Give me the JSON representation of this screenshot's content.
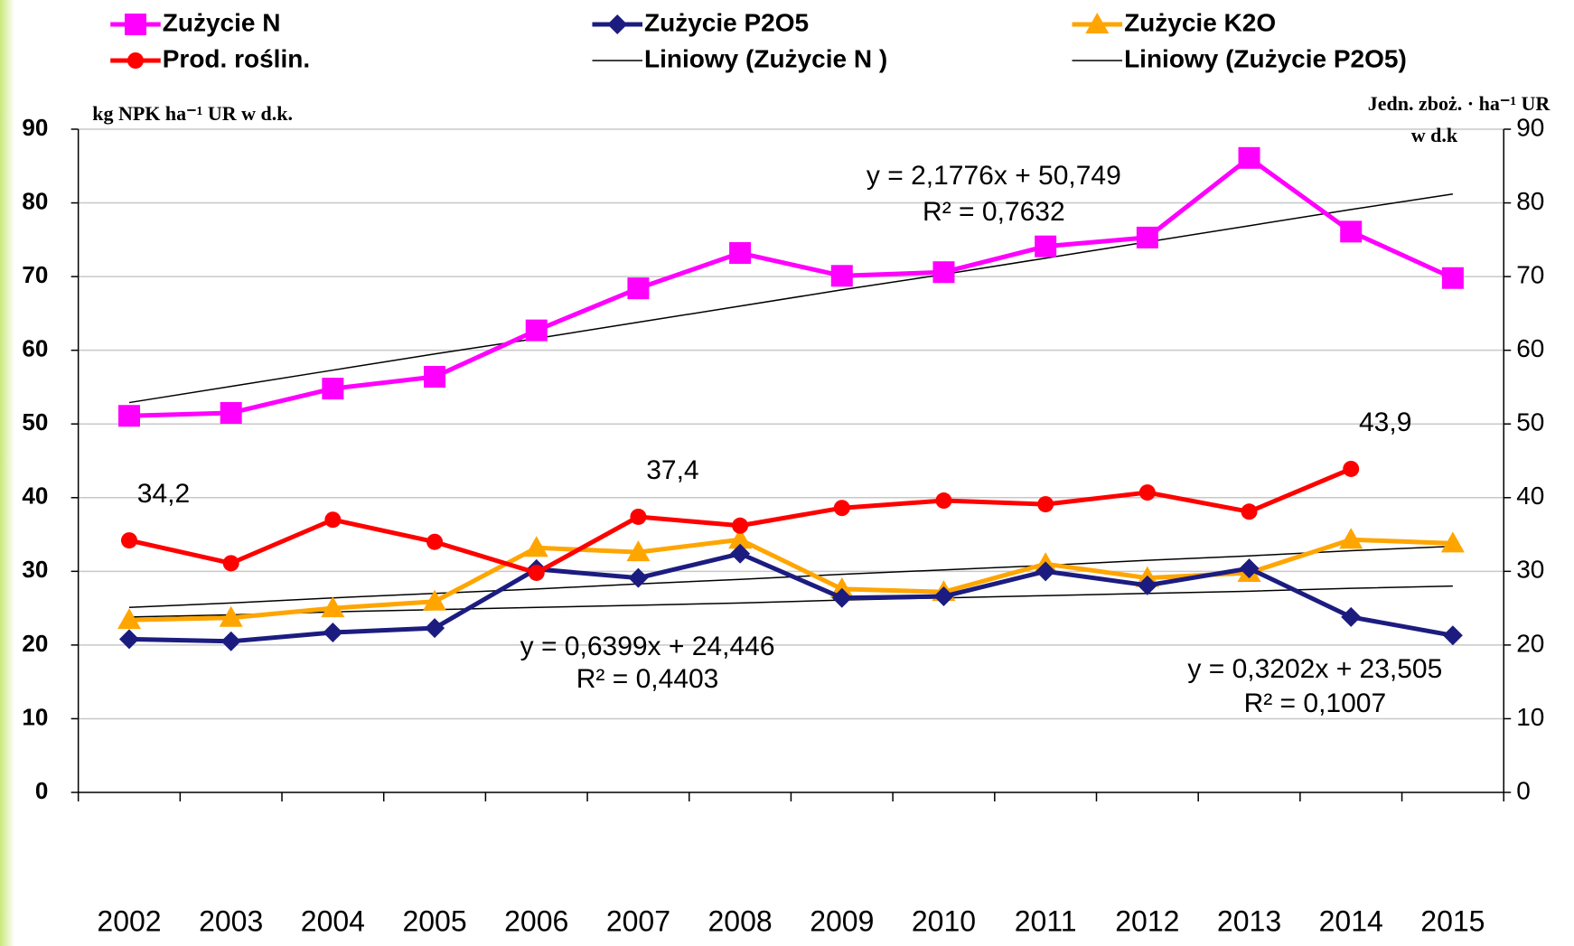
{
  "chart_data": {
    "type": "line",
    "categories": [
      "2002",
      "2003",
      "2004",
      "2005",
      "2006",
      "2007",
      "2008",
      "2009",
      "2010",
      "2011",
      "2012",
      "2013",
      "2014",
      "2015"
    ],
    "series": [
      {
        "name": "Zużycie N",
        "color": "#ff00ff",
        "marker": "square",
        "values": [
          51.1,
          51.5,
          54.8,
          56.4,
          62.7,
          68.4,
          73.2,
          70.1,
          70.6,
          74.1,
          75.3,
          86.1,
          76.1,
          69.8
        ]
      },
      {
        "name": "Zużycie P2O5",
        "color": "#1c1c80",
        "marker": "diamond",
        "values": [
          20.8,
          20.5,
          21.7,
          22.3,
          30.3,
          29.1,
          32.4,
          26.4,
          26.6,
          30.0,
          28.1,
          30.4,
          23.8,
          21.3
        ]
      },
      {
        "name": "Zużycie K2O",
        "color": "#ffa500",
        "marker": "triangle",
        "values": [
          23.4,
          23.7,
          25.0,
          25.9,
          33.2,
          32.6,
          34.3,
          27.6,
          27.2,
          31.0,
          29.1,
          29.8,
          34.3,
          33.8
        ]
      },
      {
        "name": "Prod. roślin.",
        "color": "#ff0000",
        "marker": "circle",
        "axis": "y2",
        "values": [
          34.2,
          31.1,
          37.0,
          34.0,
          29.8,
          37.4,
          36.2,
          38.6,
          39.6,
          39.1,
          40.7,
          38.1,
          43.9,
          null
        ],
        "value_labels": [
          "34,2",
          null,
          null,
          null,
          null,
          "37,4",
          null,
          null,
          null,
          null,
          null,
          null,
          "43,9",
          null
        ]
      },
      {
        "name": "Liniowy (Zużycie N )",
        "color": "#000000",
        "marker": "none",
        "values": [
          52.9,
          55.1,
          57.3,
          59.5,
          61.6,
          63.8,
          66.0,
          68.2,
          70.3,
          72.5,
          74.7,
          76.9,
          79.1,
          81.2
        ]
      },
      {
        "name": "Liniowy (Zużycie P2O5)",
        "color": "#000000",
        "marker": "none",
        "values": [
          23.8,
          24.1,
          24.5,
          24.8,
          25.1,
          25.4,
          25.7,
          26.1,
          26.4,
          26.7,
          27.0,
          27.3,
          27.7,
          28.0
        ]
      },
      {
        "color": "#000000",
        "marker": "none",
        "values": [
          25.1,
          25.7,
          26.4,
          27.0,
          27.6,
          28.3,
          28.9,
          29.6,
          30.2,
          30.8,
          31.5,
          32.1,
          32.8,
          33.4
        ]
      }
    ],
    "y_label": "kg NPK ha⁻¹ UR w d.k.",
    "y2_label": [
      "Jedn. zboż. · ha⁻¹ UR",
      "w d.k"
    ],
    "annotations": [
      "y = 2,1776x + 50,749",
      "R² = 0,7632",
      "y = 0,6399x + 24,446",
      "R² = 0,4403",
      "y = 0,3202x + 23,505",
      "R² = 0,1007"
    ],
    "ylim": [
      0,
      90
    ],
    "yticks": [
      0,
      10,
      20,
      30,
      40,
      50,
      60,
      70,
      80,
      90
    ],
    "y2lim": [
      0,
      90
    ],
    "y2ticks": [
      0,
      10,
      20,
      30,
      40,
      50,
      60,
      70,
      80,
      90
    ],
    "grid": true,
    "legend": "top"
  }
}
